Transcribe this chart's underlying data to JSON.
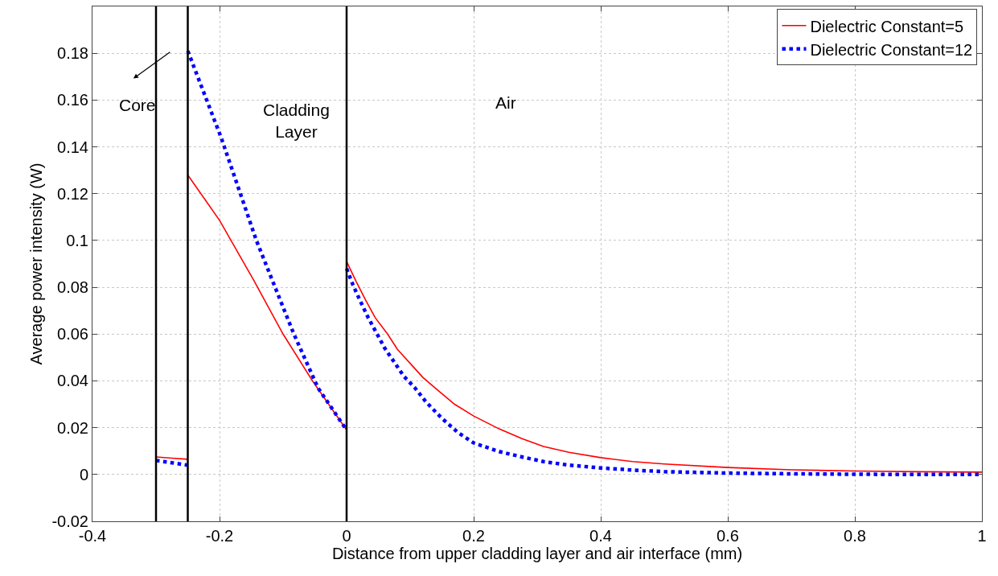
{
  "chart_data": {
    "type": "line",
    "xlabel": "Distance from upper cladding layer and air interface (mm)",
    "ylabel": "Average power intensity (W)",
    "xlim": [
      -0.4,
      1
    ],
    "xticks": [
      -0.4,
      -0.2,
      0,
      0.2,
      0.4,
      0.6,
      0.8,
      1
    ],
    "ylim": [
      -0.02,
      0.2
    ],
    "yticks": [
      -0.02,
      0,
      0.02,
      0.04,
      0.06,
      0.08,
      0.1,
      0.12,
      0.14,
      0.16,
      0.18
    ],
    "grid": true,
    "legend": "top right",
    "marker": "none",
    "series": [
      {
        "name": "Dielectric Constant=5",
        "color": "#ff0000",
        "line_style": "solid",
        "x": [
          -0.3,
          -0.275,
          -0.25,
          null,
          -0.25,
          -0.2,
          -0.146,
          -0.1,
          -0.053,
          0,
          null,
          0,
          0.015,
          0.03,
          0.045,
          0.0645,
          0.08,
          0.1,
          0.12,
          0.141,
          0.17,
          0.2,
          0.24,
          0.276,
          0.31,
          0.35,
          0.4,
          0.45,
          0.5,
          0.6,
          0.7,
          0.8,
          0.9,
          1
        ],
        "values": [
          0.0075,
          0.007,
          0.0065,
          null,
          0.128,
          0.1086,
          0.0829,
          0.06,
          0.0397,
          0.019,
          null,
          0.091,
          0.0825,
          0.0745,
          0.067,
          0.06,
          0.0535,
          0.0475,
          0.0415,
          0.0366,
          0.03,
          0.025,
          0.0195,
          0.0153,
          0.012,
          0.0095,
          0.0072,
          0.0055,
          0.0045,
          0.003,
          0.002,
          0.0015,
          0.0012,
          0.001
        ]
      },
      {
        "name": "Dielectric Constant=12",
        "color": "#0000ff",
        "line_style": "dotted",
        "x": [
          -0.3,
          -0.275,
          -0.25,
          null,
          -0.25,
          -0.197,
          -0.142,
          -0.117,
          -0.083,
          -0.045,
          0,
          null,
          0,
          0.01,
          0.02,
          0.034,
          0.048,
          0.06,
          0.075,
          0.09,
          0.1075,
          0.125,
          0.15,
          0.175,
          0.2,
          0.24,
          0.276,
          0.31,
          0.35,
          0.4,
          0.45,
          0.5,
          0.6,
          0.7,
          0.8,
          0.9,
          1
        ],
        "values": [
          0.006,
          0.005,
          0.004,
          null,
          0.181,
          0.1436,
          0.1,
          0.083,
          0.06,
          0.037,
          0.019,
          null,
          0.088,
          0.081,
          0.075,
          0.067,
          0.06,
          0.054,
          0.048,
          0.042,
          0.037,
          0.031,
          0.024,
          0.018,
          0.0135,
          0.0098,
          0.0075,
          0.0055,
          0.004,
          0.0028,
          0.0019,
          0.0012,
          0.0006,
          0.0003,
          0.0001,
          0,
          0
        ]
      }
    ],
    "ref_lines": [
      {
        "axis": "x",
        "value": -0.3,
        "color": "#000000"
      },
      {
        "axis": "x",
        "value": -0.25,
        "color": "#000000"
      },
      {
        "axis": "x",
        "value": 0,
        "color": "#000000"
      }
    ],
    "annotations": [
      "Core",
      "Cladding Layer",
      "Air"
    ]
  }
}
